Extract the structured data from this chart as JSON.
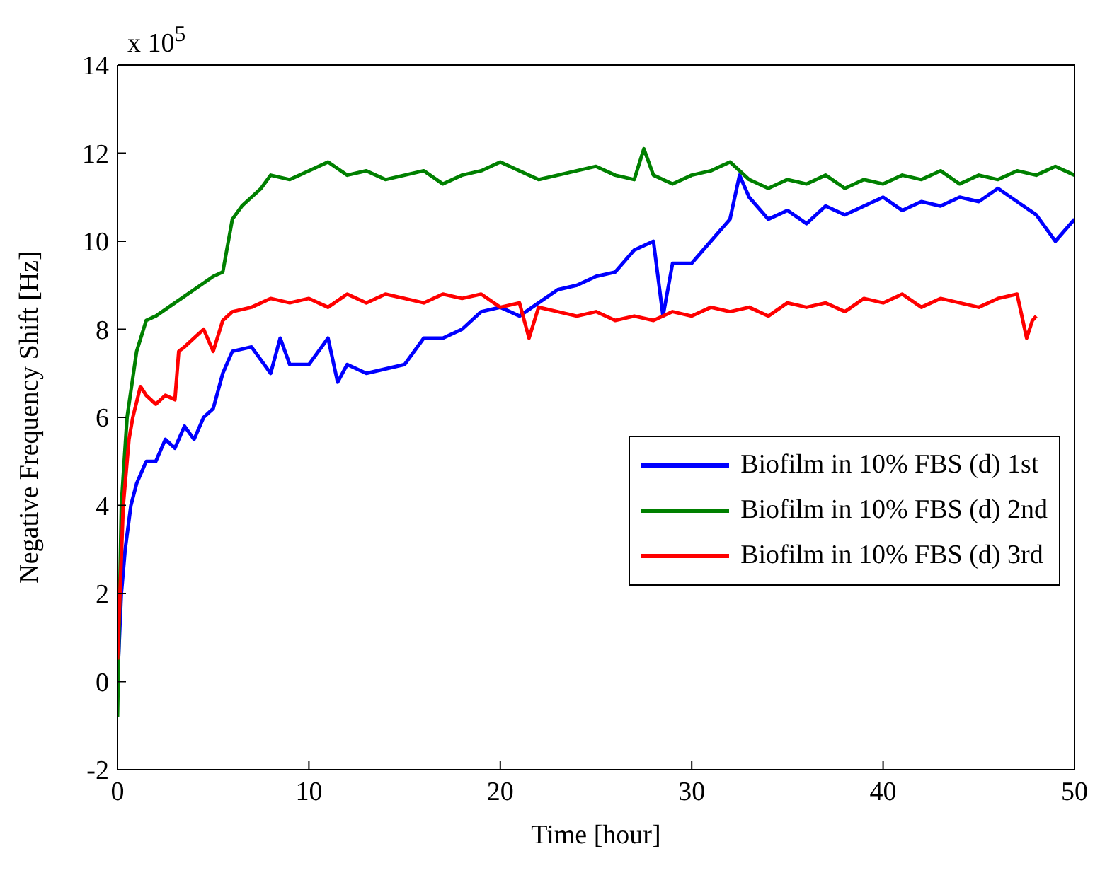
{
  "chart_data": {
    "type": "line",
    "xlabel": "Time [hour]",
    "ylabel": "Negative Frequency Shift [Hz]",
    "annotations": [
      "x 10$^{5}$"
    ],
    "xlim": [
      0,
      50
    ],
    "xticks": [
      0,
      10,
      20,
      30,
      40,
      50
    ],
    "ylim": [
      -2,
      14
    ],
    "yticks": [
      -2,
      0,
      2,
      4,
      6,
      8,
      10,
      12,
      14
    ],
    "legend": "right",
    "marker": "none",
    "line_style": "solid",
    "series": [
      {
        "name": "Biofilm in 10% FBS (d) 1st",
        "color": "#0000ff",
        "x": [
          0,
          0.2,
          0.4,
          0.7,
          1,
          1.5,
          2,
          2.5,
          3,
          3.5,
          4,
          4.5,
          5,
          5.5,
          6,
          7,
          8,
          8.5,
          9,
          10,
          11,
          11.5,
          12,
          13,
          14,
          15,
          16,
          17,
          18,
          19,
          20,
          21,
          22,
          23,
          24,
          25,
          26,
          27,
          28,
          28.5,
          29,
          30,
          31,
          32,
          32.5,
          33,
          34,
          35,
          36,
          37,
          38,
          39,
          40,
          41,
          42,
          43,
          44,
          45,
          46,
          47,
          48,
          49,
          50
        ],
        "values": [
          0,
          2,
          3,
          4,
          4.5,
          5,
          5,
          5.5,
          5.3,
          5.8,
          5.5,
          6,
          6.2,
          7,
          7.5,
          7.6,
          7,
          7.8,
          7.2,
          7.2,
          7.8,
          6.8,
          7.2,
          7,
          7.1,
          7.2,
          7.8,
          7.8,
          8,
          8.4,
          8.5,
          8.3,
          8.6,
          8.9,
          9,
          9.2,
          9.3,
          9.8,
          10,
          8.3,
          9.5,
          9.5,
          10,
          10.5,
          11.5,
          11,
          10.5,
          10.7,
          10.4,
          10.8,
          10.6,
          10.8,
          11,
          10.7,
          10.9,
          10.8,
          11,
          10.9,
          11.2,
          10.9,
          10.6,
          10,
          10.5
        ]
      },
      {
        "name": "Biofilm in 10% FBS (d) 2nd",
        "color": "#008000",
        "x": [
          0,
          0.2,
          0.5,
          1,
          1.5,
          2,
          3,
          4,
          5,
          5.5,
          6,
          6.5,
          7,
          7.5,
          8,
          9,
          10,
          11,
          12,
          13,
          14,
          15,
          16,
          17,
          18,
          19,
          20,
          21,
          22,
          23,
          24,
          25,
          26,
          27,
          27.5,
          28,
          29,
          30,
          31,
          32,
          33,
          34,
          35,
          36,
          37,
          38,
          39,
          40,
          41,
          42,
          43,
          44,
          45,
          46,
          47,
          48,
          49,
          50
        ],
        "values": [
          -0.8,
          4,
          6,
          7.5,
          8.2,
          8.3,
          8.6,
          8.9,
          9.2,
          9.3,
          10.5,
          10.8,
          11,
          11.2,
          11.5,
          11.4,
          11.6,
          11.8,
          11.5,
          11.6,
          11.4,
          11.5,
          11.6,
          11.3,
          11.5,
          11.6,
          11.8,
          11.6,
          11.4,
          11.5,
          11.6,
          11.7,
          11.5,
          11.4,
          12.1,
          11.5,
          11.3,
          11.5,
          11.6,
          11.8,
          11.4,
          11.2,
          11.4,
          11.3,
          11.5,
          11.2,
          11.4,
          11.3,
          11.5,
          11.4,
          11.6,
          11.3,
          11.5,
          11.4,
          11.6,
          11.5,
          11.7,
          11.5
        ]
      },
      {
        "name": "Biofilm in 10% FBS (d) 3rd",
        "color": "#ff0000",
        "x": [
          0,
          0.3,
          0.6,
          0.8,
          1.2,
          1.5,
          2,
          2.5,
          3,
          3.2,
          3.5,
          4,
          4.5,
          5,
          5.5,
          6,
          7,
          8,
          9,
          10,
          11,
          12,
          13,
          14,
          15,
          16,
          17,
          18,
          19,
          20,
          21,
          21.5,
          22,
          23,
          24,
          25,
          26,
          27,
          28,
          29,
          30,
          31,
          32,
          33,
          34,
          35,
          36,
          37,
          38,
          39,
          40,
          41,
          42,
          43,
          44,
          45,
          46,
          47,
          47.5,
          47.8,
          48
        ],
        "values": [
          0.5,
          4,
          5.5,
          6,
          6.7,
          6.5,
          6.3,
          6.5,
          6.4,
          7.5,
          7.6,
          7.8,
          8,
          7.5,
          8.2,
          8.4,
          8.5,
          8.7,
          8.6,
          8.7,
          8.5,
          8.8,
          8.6,
          8.8,
          8.7,
          8.6,
          8.8,
          8.7,
          8.8,
          8.5,
          8.6,
          7.8,
          8.5,
          8.4,
          8.3,
          8.4,
          8.2,
          8.3,
          8.2,
          8.4,
          8.3,
          8.5,
          8.4,
          8.5,
          8.3,
          8.6,
          8.5,
          8.6,
          8.4,
          8.7,
          8.6,
          8.8,
          8.5,
          8.7,
          8.6,
          8.5,
          8.7,
          8.8,
          7.8,
          8.2,
          8.3
        ]
      }
    ]
  }
}
